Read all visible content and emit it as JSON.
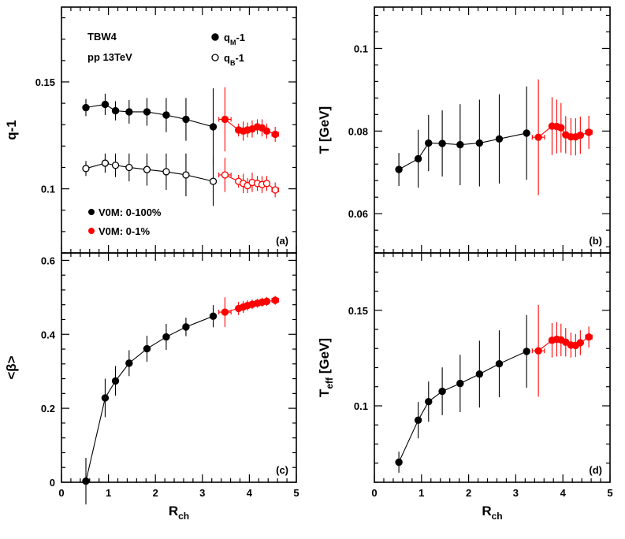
{
  "colors": {
    "black": "#000000",
    "red": "#ff0000"
  },
  "chart_data": [
    {
      "id": "a",
      "type": "scatter",
      "panel_label": "(a)",
      "ylabel": "q-1",
      "xlabel": "",
      "xlim": [
        0,
        5
      ],
      "ylim": [
        0.07,
        0.185
      ],
      "xticks": [
        "0",
        "1",
        "2",
        "3",
        "4",
        "5"
      ],
      "yticks": [
        {
          "v": 0.1,
          "label": "0.1"
        },
        {
          "v": 0.15,
          "label": "0.15"
        }
      ],
      "annotations": [
        "TBW4",
        "pp 13TeV"
      ],
      "legend_top": [
        {
          "marker": "filled",
          "text": "q",
          "sub": "M",
          "suffix": "-1"
        },
        {
          "marker": "open",
          "text": "q",
          "sub": "B",
          "suffix": "-1"
        }
      ],
      "legend_bottom": [
        {
          "color": "black",
          "text": "V0M: 0-100%"
        },
        {
          "color": "red",
          "text": "V0M: 0-1%"
        }
      ],
      "series": [
        {
          "color": "black",
          "marker": "filled",
          "connect": true,
          "x": [
            0.52,
            0.93,
            1.15,
            1.44,
            1.82,
            2.23,
            2.65,
            3.23
          ],
          "y": [
            0.138,
            0.1395,
            0.1365,
            0.136,
            0.136,
            0.1345,
            0.1325,
            0.129
          ],
          "yerr": [
            0.004,
            0.005,
            0.0045,
            0.0055,
            0.0065,
            0.008,
            0.01,
            0.018
          ],
          "xerr": [
            0,
            0,
            0,
            0,
            0,
            0,
            0,
            0.05
          ]
        },
        {
          "color": "black",
          "marker": "open",
          "connect": true,
          "x": [
            0.52,
            0.93,
            1.15,
            1.44,
            1.82,
            2.23,
            2.65,
            3.23
          ],
          "y": [
            0.1095,
            0.112,
            0.111,
            0.11,
            0.109,
            0.108,
            0.1065,
            0.1035
          ],
          "yerr": [
            0.0035,
            0.0045,
            0.0055,
            0.0065,
            0.0075,
            0.0085,
            0.01,
            0.0115
          ],
          "xerr": [
            0,
            0,
            0,
            0,
            0,
            0,
            0,
            0.05
          ]
        },
        {
          "color": "red",
          "marker": "filled",
          "connect": true,
          "x": [
            3.48,
            3.77,
            3.87,
            3.96,
            4.06,
            4.17,
            4.27,
            4.37,
            4.55
          ],
          "y": [
            0.1325,
            0.1275,
            0.127,
            0.1275,
            0.128,
            0.129,
            0.1285,
            0.127,
            0.1255
          ],
          "yerr": [
            0.015,
            0.003,
            0.0045,
            0.0035,
            0.004,
            0.0035,
            0.004,
            0.0035,
            0.0035
          ],
          "xerr": [
            0.13,
            0.05,
            0.05,
            0.05,
            0.05,
            0.05,
            0.05,
            0.05,
            0.07
          ]
        },
        {
          "color": "red",
          "marker": "open",
          "connect": true,
          "x": [
            3.48,
            3.77,
            3.87,
            3.96,
            4.06,
            4.17,
            4.27,
            4.37,
            4.55
          ],
          "y": [
            0.1065,
            0.1035,
            0.1025,
            0.1015,
            0.103,
            0.1025,
            0.102,
            0.1025,
            0.0995
          ],
          "yerr": [
            0.008,
            0.003,
            0.0045,
            0.0035,
            0.0045,
            0.0035,
            0.004,
            0.0035,
            0.0035
          ],
          "xerr": [
            0.13,
            0.05,
            0.05,
            0.05,
            0.05,
            0.05,
            0.05,
            0.05,
            0.07
          ]
        }
      ]
    },
    {
      "id": "b",
      "type": "scatter",
      "panel_label": "(b)",
      "ylabel": "T [GeV]",
      "xlabel": "",
      "xlim": [
        0,
        5
      ],
      "ylim": [
        0.0505,
        0.11
      ],
      "xticks": [
        "0",
        "1",
        "2",
        "3",
        "4",
        "5"
      ],
      "yticks": [
        {
          "v": 0.06,
          "label": "0.06"
        },
        {
          "v": 0.08,
          "label": "0.08"
        },
        {
          "v": 0.1,
          "label": "0.1"
        }
      ],
      "series": [
        {
          "color": "black",
          "marker": "filled",
          "connect": true,
          "x": [
            0.52,
            0.93,
            1.15,
            1.44,
            1.82,
            2.23,
            2.65,
            3.23
          ],
          "y": [
            0.0707,
            0.0733,
            0.0771,
            0.077,
            0.0767,
            0.0771,
            0.0781,
            0.0795
          ],
          "yerr": [
            0.004,
            0.007,
            0.0068,
            0.008,
            0.0098,
            0.0105,
            0.0108,
            0.0113
          ],
          "xerr": [
            0,
            0,
            0,
            0,
            0,
            0,
            0,
            0.05
          ]
        },
        {
          "color": "red",
          "marker": "filled",
          "connect": true,
          "x": [
            3.48,
            3.77,
            3.87,
            3.96,
            4.06,
            4.17,
            4.27,
            4.37,
            4.55
          ],
          "y": [
            0.0785,
            0.0812,
            0.0811,
            0.0808,
            0.0791,
            0.0786,
            0.0786,
            0.079,
            0.0797
          ],
          "yerr": [
            0.014,
            0.007,
            0.0065,
            0.006,
            0.0045,
            0.0045,
            0.0045,
            0.0045,
            0.004
          ],
          "xerr": [
            0.13,
            0.05,
            0.05,
            0.05,
            0.05,
            0.05,
            0.05,
            0.05,
            0.07
          ]
        }
      ]
    },
    {
      "id": "c",
      "type": "scatter",
      "panel_label": "(c)",
      "ylabel": "<β>",
      "xlabel": "R",
      "xlabel_sub": "ch",
      "xlim": [
        0,
        5
      ],
      "ylim": [
        0,
        0.62
      ],
      "xticks": [
        "0",
        "1",
        "2",
        "3",
        "4",
        "5"
      ],
      "yticks": [
        {
          "v": 0,
          "label": "0"
        },
        {
          "v": 0.2,
          "label": "0.2"
        },
        {
          "v": 0.4,
          "label": "0.4"
        },
        {
          "v": 0.6,
          "label": "0.6"
        }
      ],
      "series": [
        {
          "color": "black",
          "marker": "filled",
          "connect": true,
          "x": [
            0.52,
            0.93,
            1.15,
            1.44,
            1.82,
            2.23,
            2.65,
            3.23
          ],
          "y": [
            0.003,
            0.228,
            0.274,
            0.322,
            0.361,
            0.393,
            0.42,
            0.449
          ],
          "yerr": [
            0.063,
            0.052,
            0.04,
            0.035,
            0.035,
            0.035,
            0.025,
            0.03
          ],
          "xerr": [
            0,
            0,
            0,
            0,
            0,
            0,
            0,
            0.05
          ]
        },
        {
          "color": "red",
          "marker": "filled",
          "connect": true,
          "x": [
            3.48,
            3.77,
            3.87,
            3.96,
            4.06,
            4.17,
            4.27,
            4.37,
            4.55
          ],
          "y": [
            0.46,
            0.47,
            0.474,
            0.478,
            0.481,
            0.484,
            0.487,
            0.489,
            0.492
          ],
          "yerr": [
            0.04,
            0.018,
            0.016,
            0.014,
            0.013,
            0.012,
            0.012,
            0.012,
            0.012
          ],
          "xerr": [
            0.13,
            0.05,
            0.05,
            0.05,
            0.05,
            0.05,
            0.05,
            0.05,
            0.07
          ]
        }
      ]
    },
    {
      "id": "d",
      "type": "scatter",
      "panel_label": "(d)",
      "ylabel": "T",
      "ylabel_sub": "eff",
      "ylabel_suffix": " [GeV]",
      "xlabel": "R",
      "xlabel_sub": "ch",
      "xlim": [
        0,
        5
      ],
      "ylim": [
        0.06,
        0.18
      ],
      "xticks": [
        "0",
        "1",
        "2",
        "3",
        "4",
        "5"
      ],
      "yticks": [
        {
          "v": 0.1,
          "label": "0.1"
        },
        {
          "v": 0.15,
          "label": "0.15"
        }
      ],
      "series": [
        {
          "color": "black",
          "marker": "filled",
          "connect": true,
          "x": [
            0.52,
            0.93,
            1.15,
            1.44,
            1.82,
            2.23,
            2.65,
            3.23
          ],
          "y": [
            0.0705,
            0.0925,
            0.1022,
            0.1076,
            0.1117,
            0.1166,
            0.122,
            0.1285
          ],
          "yerr": [
            0.0055,
            0.0095,
            0.0105,
            0.0125,
            0.015,
            0.0175,
            0.0175,
            0.019
          ],
          "xerr": [
            0,
            0,
            0,
            0,
            0,
            0,
            0,
            0.05
          ]
        },
        {
          "color": "red",
          "marker": "filled",
          "connect": true,
          "x": [
            3.48,
            3.77,
            3.87,
            3.96,
            4.06,
            4.17,
            4.27,
            4.37,
            4.55
          ],
          "y": [
            0.1288,
            0.1343,
            0.1348,
            0.1345,
            0.1333,
            0.1318,
            0.1316,
            0.133,
            0.136
          ],
          "yerr": [
            0.024,
            0.009,
            0.009,
            0.0085,
            0.0075,
            0.0065,
            0.006,
            0.0065,
            0.0055
          ],
          "xerr": [
            0.13,
            0.05,
            0.05,
            0.05,
            0.05,
            0.05,
            0.05,
            0.05,
            0.07
          ]
        }
      ]
    }
  ]
}
